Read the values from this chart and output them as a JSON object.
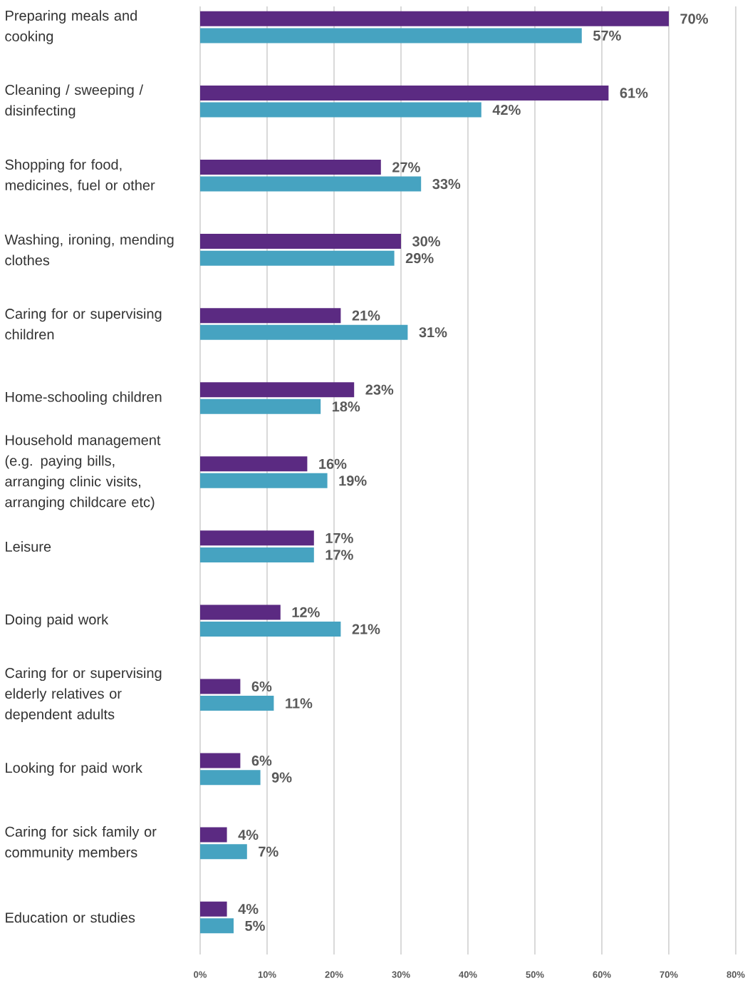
{
  "chart_data": {
    "type": "bar",
    "orientation": "horizontal",
    "categories": [
      "Preparing meals and cooking",
      "Cleaning / sweeping / disinfecting",
      "Shopping for food, medicines, fuel or other",
      "Washing, ironing, mending clothes",
      "Caring for or supervising children",
      "Home-schooling children",
      "Household management (e.g. paying bills, arranging clinic visits, arranging childcare etc)",
      "Leisure",
      "Doing paid work",
      "Caring for or supervising elderly relatives or dependent adults",
      "Looking for paid work",
      "Caring for sick family or community members",
      "Education or studies"
    ],
    "series": [
      {
        "color": "#5b2a82",
        "values": [
          70,
          61,
          27,
          30,
          21,
          23,
          16,
          17,
          12,
          6,
          6,
          4,
          4
        ],
        "value_labels": [
          "70%",
          "61%",
          "27%",
          "30%",
          "21%",
          "23%",
          "16%",
          "17%",
          "12%",
          "6%",
          "6%",
          "4%",
          "4%"
        ]
      },
      {
        "color": "#46a3c1",
        "values": [
          57,
          42,
          33,
          29,
          31,
          18,
          19,
          17,
          21,
          11,
          9,
          7,
          5
        ],
        "value_labels": [
          "57%",
          "42%",
          "33%",
          "29%",
          "31%",
          "18%",
          "19%",
          "17%",
          "21%",
          "11%",
          "9%",
          "7%",
          "5%"
        ]
      }
    ],
    "xlim": [
      0,
      80
    ],
    "xticks": [
      {
        "value": 0,
        "label": "0%"
      },
      {
        "value": 10,
        "label": "10%"
      },
      {
        "value": 20,
        "label": "20%"
      },
      {
        "value": 30,
        "label": "30%"
      },
      {
        "value": 40,
        "label": "40%"
      },
      {
        "value": 50,
        "label": "50%"
      },
      {
        "value": 60,
        "label": "60%"
      },
      {
        "value": 70,
        "label": "70%"
      },
      {
        "value": 80,
        "label": "80%"
      }
    ],
    "grid": "x"
  }
}
